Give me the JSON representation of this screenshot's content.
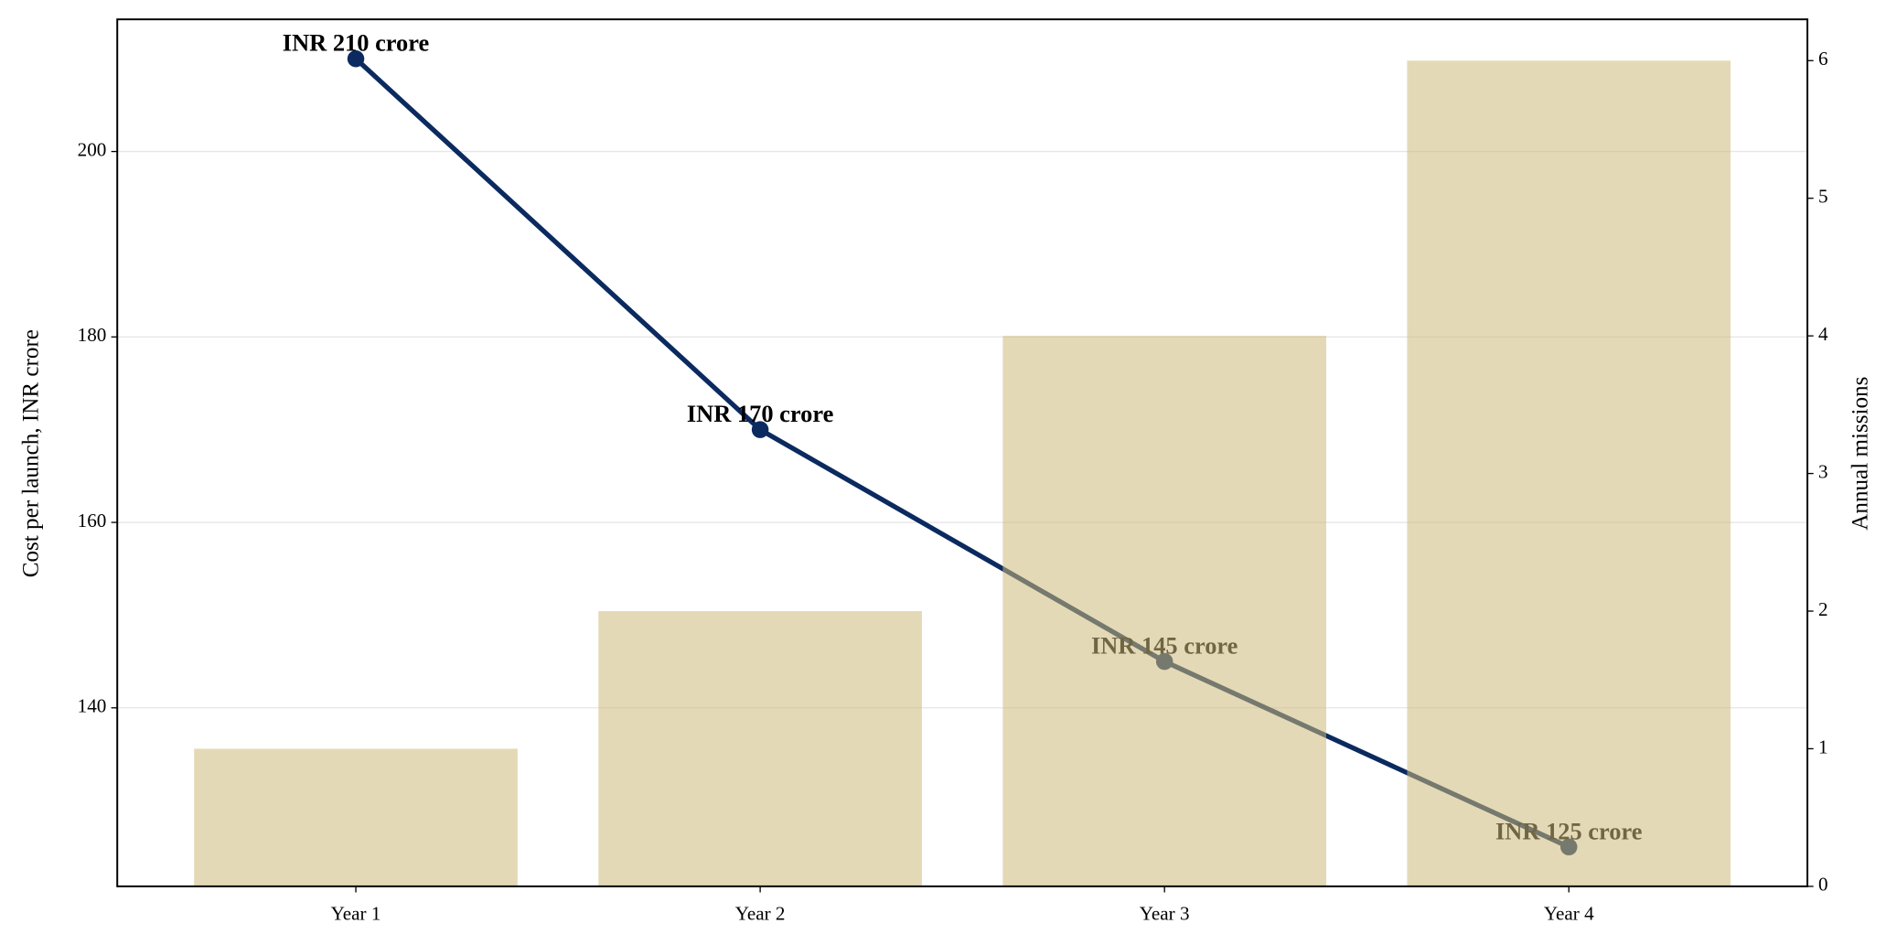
{
  "chart_data": {
    "type": "bar_line",
    "categories": [
      "Year 1",
      "Year 2",
      "Year 3",
      "Year 4"
    ],
    "series": [
      {
        "name": "Cost per launch",
        "type": "line",
        "axis": "y",
        "color": "#0b2a5f",
        "values": [
          210,
          170,
          145,
          125
        ],
        "value_labels": [
          "INR 210 crore",
          "INR 170 crore",
          "INR 145 crore",
          "INR 125 crore"
        ]
      },
      {
        "name": "Annual missions",
        "type": "bar",
        "axis": "y2",
        "color": "#ceba7a",
        "values": [
          1,
          2,
          4,
          6
        ]
      }
    ],
    "ylabel": "Cost per launch, INR crore",
    "y2label": "Annual missions",
    "ylim": [
      120.75,
      214.25
    ],
    "yticks": [
      140,
      160,
      180,
      200
    ],
    "y2lim": [
      0,
      6.3
    ],
    "y2ticks": [
      0,
      1,
      2,
      3,
      4,
      5,
      6
    ],
    "grid": true
  }
}
